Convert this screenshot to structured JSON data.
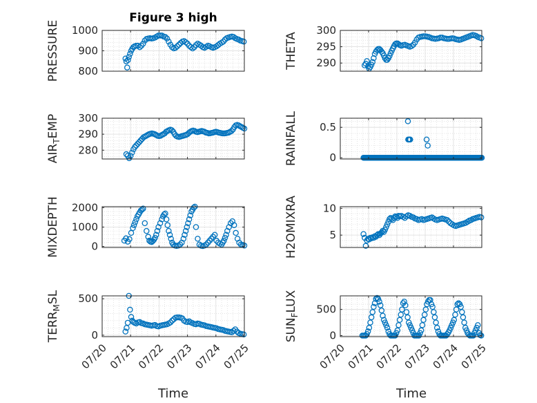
{
  "figure": {
    "title": "Figure 3 high",
    "xlabel": "Time"
  },
  "chart_data": [
    {
      "type": "scatter",
      "ylabel": "PRESSURE",
      "xlim": [
        0,
        5
      ],
      "ylim": [
        800,
        1000
      ],
      "yticks": [
        800,
        900,
        1000
      ],
      "xticks": [
        "07/20",
        "07/21",
        "07/22",
        "07/23",
        "07/24",
        "07/25"
      ],
      "show_xticklabels": false,
      "grid": true,
      "x": [
        0.82,
        0.85,
        0.88,
        0.91,
        0.94,
        0.98,
        1.02,
        1.06,
        1.1,
        1.14,
        1.2,
        1.26,
        1.32,
        1.38,
        1.44,
        1.5,
        1.56,
        1.62,
        1.68,
        1.74,
        1.8,
        1.86,
        1.92,
        1.98,
        2.04,
        2.1,
        2.16,
        2.22,
        2.28,
        2.34,
        2.4,
        2.46,
        2.52,
        2.58,
        2.64,
        2.7,
        2.76,
        2.82,
        2.88,
        2.94,
        3.0,
        3.06,
        3.12,
        3.18,
        3.24,
        3.3,
        3.36,
        3.42,
        3.48,
        3.54,
        3.6,
        3.66,
        3.72,
        3.78,
        3.84,
        3.9,
        3.96,
        4.02,
        4.08,
        4.14,
        4.2,
        4.26,
        4.32,
        4.38,
        4.44,
        4.5,
        4.56,
        4.62,
        4.68,
        4.74,
        4.8,
        4.86,
        4.92,
        4.98
      ],
      "y": [
        862,
        848,
        818,
        855,
        870,
        885,
        900,
        910,
        918,
        922,
        925,
        925,
        918,
        925,
        935,
        950,
        958,
        960,
        962,
        960,
        962,
        965,
        970,
        975,
        975,
        975,
        970,
        968,
        960,
        945,
        930,
        918,
        912,
        915,
        922,
        930,
        938,
        945,
        948,
        942,
        935,
        925,
        918,
        912,
        918,
        928,
        935,
        930,
        925,
        918,
        915,
        920,
        925,
        922,
        918,
        915,
        918,
        922,
        928,
        935,
        940,
        945,
        955,
        962,
        965,
        968,
        970,
        968,
        962,
        958,
        955,
        950,
        948,
        945
      ]
    },
    {
      "type": "scatter",
      "ylabel": "THETA",
      "xlim": [
        0,
        5
      ],
      "ylim": [
        287.5,
        300
      ],
      "yticks": [
        290,
        295,
        300
      ],
      "xticks": [
        "07/20",
        "07/21",
        "07/22",
        "07/23",
        "07/24",
        "07/25"
      ],
      "show_xticklabels": false,
      "grid": true,
      "x": [
        0.86,
        0.9,
        0.94,
        0.98,
        1.02,
        1.06,
        1.1,
        1.14,
        1.18,
        1.22,
        1.26,
        1.3,
        1.34,
        1.38,
        1.42,
        1.46,
        1.5,
        1.54,
        1.58,
        1.62,
        1.66,
        1.7,
        1.74,
        1.78,
        1.82,
        1.86,
        1.9,
        1.94,
        1.98,
        2.02,
        2.06,
        2.1,
        2.16,
        2.22,
        2.28,
        2.34,
        2.4,
        2.46,
        2.52,
        2.58,
        2.64,
        2.7,
        2.76,
        2.82,
        2.88,
        2.94,
        3.0,
        3.06,
        3.12,
        3.18,
        3.24,
        3.3,
        3.36,
        3.42,
        3.48,
        3.54,
        3.6,
        3.66,
        3.72,
        3.78,
        3.84,
        3.9,
        3.96,
        4.02,
        4.08,
        4.14,
        4.2,
        4.26,
        4.32,
        4.38,
        4.44,
        4.5,
        4.56,
        4.62,
        4.68,
        4.74,
        4.8,
        4.86,
        4.92,
        4.98
      ],
      "y": [
        289.3,
        289.8,
        290.6,
        289.0,
        288.3,
        288.8,
        289.5,
        290.3,
        291.5,
        292.8,
        293.5,
        294.0,
        294.3,
        294.3,
        294.0,
        293.5,
        293.0,
        292.3,
        291.5,
        291.0,
        291.0,
        291.5,
        292.2,
        293.0,
        293.8,
        294.5,
        295.2,
        295.8,
        296.0,
        296.0,
        295.8,
        295.5,
        295.3,
        295.5,
        295.6,
        295.4,
        295.2,
        295.0,
        295.2,
        295.6,
        296.3,
        297.2,
        297.8,
        298.0,
        298.1,
        298.2,
        298.2,
        298.1,
        298.0,
        297.8,
        297.6,
        297.5,
        297.4,
        297.5,
        297.6,
        297.8,
        297.8,
        297.6,
        297.5,
        297.4,
        297.4,
        297.5,
        297.6,
        297.5,
        297.3,
        297.2,
        297.1,
        297.2,
        297.4,
        297.6,
        297.8,
        298.0,
        298.2,
        298.4,
        298.6,
        298.5,
        298.3,
        298.0,
        297.8,
        297.6
      ]
    },
    {
      "type": "scatter",
      "ylabel": "AIR_T_EMP",
      "xlim": [
        0,
        5
      ],
      "ylim": [
        274.5,
        300
      ],
      "yticks": [
        280,
        290,
        300
      ],
      "xticks": [
        "07/20",
        "07/21",
        "07/22",
        "07/23",
        "07/24",
        "07/25"
      ],
      "show_xticklabels": false,
      "grid": true,
      "x": [
        0.85,
        0.9,
        0.95,
        1.0,
        1.05,
        1.1,
        1.15,
        1.2,
        1.25,
        1.3,
        1.35,
        1.4,
        1.45,
        1.5,
        1.55,
        1.6,
        1.65,
        1.7,
        1.75,
        1.8,
        1.85,
        1.9,
        1.95,
        2.0,
        2.05,
        2.1,
        2.15,
        2.2,
        2.25,
        2.3,
        2.35,
        2.4,
        2.45,
        2.5,
        2.55,
        2.6,
        2.65,
        2.7,
        2.75,
        2.8,
        2.85,
        2.9,
        2.95,
        3.0,
        3.05,
        3.1,
        3.15,
        3.2,
        3.25,
        3.3,
        3.35,
        3.4,
        3.45,
        3.5,
        3.55,
        3.6,
        3.65,
        3.7,
        3.75,
        3.8,
        3.85,
        3.9,
        3.95,
        4.0,
        4.05,
        4.1,
        4.15,
        4.2,
        4.25,
        4.3,
        4.35,
        4.4,
        4.45,
        4.5,
        4.55,
        4.6,
        4.65,
        4.7,
        4.75,
        4.8,
        4.85,
        4.9,
        4.95,
        5.0
      ],
      "y": [
        277.5,
        276.5,
        275.0,
        276.5,
        278.5,
        280.5,
        282.0,
        283.0,
        284.0,
        285.0,
        286.0,
        287.0,
        288.0,
        288.5,
        289.0,
        289.5,
        290.0,
        290.3,
        290.5,
        290.3,
        290.0,
        289.5,
        289.0,
        288.8,
        289.0,
        289.5,
        290.0,
        290.5,
        291.5,
        292.0,
        292.5,
        292.8,
        292.5,
        291.5,
        290.0,
        289.0,
        288.5,
        288.3,
        288.5,
        288.8,
        289.0,
        289.3,
        289.5,
        290.0,
        290.8,
        291.5,
        292.0,
        292.3,
        292.0,
        291.5,
        291.3,
        291.5,
        291.8,
        292.0,
        291.8,
        291.5,
        291.0,
        290.8,
        290.5,
        290.6,
        290.8,
        291.0,
        291.3,
        291.5,
        291.3,
        291.0,
        290.8,
        290.6,
        290.5,
        290.5,
        290.6,
        290.8,
        291.0,
        291.5,
        292.0,
        293.0,
        294.5,
        295.5,
        295.8,
        295.5,
        295.0,
        294.5,
        294.0,
        293.5
      ]
    },
    {
      "type": "scatter",
      "ylabel": "RAINFALL",
      "xlim": [
        0,
        5
      ],
      "ylim": [
        -0.02,
        0.65
      ],
      "yticks": [
        0,
        0.5
      ],
      "ytick_labels": [
        "0",
        "0.5"
      ],
      "xticks": [
        "07/20",
        "07/21",
        "07/22",
        "07/23",
        "07/24",
        "07/25"
      ],
      "show_xticklabels": false,
      "grid": true,
      "baseline": {
        "from": 0.82,
        "to": 5.0,
        "step": 0.02,
        "value": 0
      },
      "x": [
        2.39,
        2.4,
        2.42,
        2.45,
        2.47,
        3.05,
        3.09
      ],
      "y": [
        0.6,
        0.3,
        0.3,
        0.3,
        0.3,
        0.3,
        0.2
      ]
    },
    {
      "type": "scatter",
      "ylabel": "MIXDEPTH",
      "xlim": [
        0,
        5
      ],
      "ylim": [
        -50,
        2050
      ],
      "yticks": [
        0,
        1000,
        2000
      ],
      "xticks": [
        "07/20",
        "07/21",
        "07/22",
        "07/23",
        "07/24",
        "07/25"
      ],
      "show_xticklabels": false,
      "grid": true,
      "x": [
        0.78,
        0.84,
        0.9,
        0.96,
        1.02,
        1.08,
        1.12,
        1.16,
        1.2,
        1.24,
        1.28,
        1.32,
        1.36,
        1.4,
        1.44,
        1.5,
        1.56,
        1.62,
        1.66,
        1.7,
        1.74,
        1.78,
        1.82,
        1.86,
        1.9,
        1.94,
        1.98,
        2.04,
        2.1,
        2.14,
        2.18,
        2.22,
        2.26,
        2.3,
        2.34,
        2.38,
        2.42,
        2.46,
        2.5,
        2.56,
        2.62,
        2.68,
        2.74,
        2.8,
        2.86,
        2.9,
        2.94,
        2.98,
        3.02,
        3.06,
        3.1,
        3.14,
        3.18,
        3.22,
        3.26,
        3.3,
        3.36,
        3.42,
        3.48,
        3.54,
        3.6,
        3.66,
        3.72,
        3.78,
        3.84,
        3.9,
        3.96,
        4.02,
        4.08,
        4.14,
        4.2,
        4.24,
        4.28,
        4.32,
        4.36,
        4.4,
        4.46,
        4.52,
        4.58,
        4.64,
        4.7,
        4.76,
        4.82,
        4.88,
        4.94,
        5.0
      ],
      "y": [
        300,
        420,
        250,
        380,
        700,
        950,
        1100,
        1250,
        1400,
        1550,
        1650,
        1750,
        1850,
        1900,
        1950,
        1200,
        800,
        500,
        300,
        250,
        230,
        280,
        350,
        450,
        600,
        800,
        1000,
        1200,
        1400,
        1550,
        1650,
        1700,
        1400,
        1100,
        800,
        600,
        400,
        200,
        100,
        50,
        30,
        50,
        100,
        200,
        400,
        600,
        800,
        1000,
        1200,
        1400,
        1600,
        1800,
        1900,
        2000,
        2050,
        1000,
        400,
        100,
        40,
        20,
        50,
        100,
        200,
        300,
        400,
        500,
        600,
        300,
        200,
        150,
        100,
        200,
        300,
        450,
        600,
        800,
        1000,
        1200,
        1300,
        1100,
        700,
        400,
        200,
        100,
        80,
        50
      ]
    },
    {
      "type": "scatter",
      "ylabel": "H2OMIXRA",
      "xlim": [
        0,
        5
      ],
      "ylim": [
        2.7,
        10.3
      ],
      "yticks": [
        5,
        10
      ],
      "xticks": [
        "07/20",
        "07/21",
        "07/22",
        "07/23",
        "07/24",
        "07/25"
      ],
      "show_xticklabels": false,
      "grid": true,
      "x": [
        0.82,
        0.86,
        0.9,
        0.94,
        0.98,
        1.02,
        1.06,
        1.1,
        1.14,
        1.18,
        1.22,
        1.26,
        1.3,
        1.34,
        1.38,
        1.42,
        1.46,
        1.5,
        1.54,
        1.58,
        1.62,
        1.66,
        1.7,
        1.74,
        1.78,
        1.82,
        1.86,
        1.9,
        1.94,
        1.98,
        2.02,
        2.06,
        2.1,
        2.16,
        2.22,
        2.28,
        2.34,
        2.4,
        2.46,
        2.52,
        2.58,
        2.64,
        2.7,
        2.76,
        2.82,
        2.88,
        2.94,
        3.0,
        3.06,
        3.12,
        3.18,
        3.24,
        3.3,
        3.36,
        3.42,
        3.48,
        3.54,
        3.6,
        3.66,
        3.72,
        3.78,
        3.84,
        3.9,
        3.96,
        4.02,
        4.08,
        4.14,
        4.2,
        4.26,
        4.32,
        4.38,
        4.44,
        4.5,
        4.56,
        4.62,
        4.68,
        4.74,
        4.8,
        4.86,
        4.92,
        4.98
      ],
      "y": [
        5.2,
        4.5,
        3.0,
        4.0,
        4.3,
        4.2,
        4.5,
        4.4,
        4.6,
        4.5,
        4.8,
        4.7,
        5.0,
        5.2,
        5.0,
        5.3,
        5.5,
        5.8,
        5.6,
        6.0,
        6.5,
        7.0,
        7.5,
        8.0,
        8.2,
        8.0,
        7.8,
        8.2,
        8.5,
        8.4,
        8.2,
        8.6,
        8.5,
        8.6,
        8.4,
        8.2,
        8.5,
        8.7,
        8.6,
        8.4,
        8.3,
        8.1,
        8.0,
        7.8,
        7.9,
        8.0,
        7.8,
        7.9,
        8.0,
        8.1,
        8.2,
        8.3,
        8.1,
        7.9,
        7.8,
        7.9,
        8.0,
        8.1,
        8.0,
        7.9,
        7.8,
        7.5,
        7.2,
        7.0,
        6.8,
        6.7,
        6.8,
        6.9,
        7.0,
        7.1,
        7.2,
        7.3,
        7.5,
        7.7,
        7.8,
        8.0,
        8.1,
        8.2,
        8.3,
        8.4,
        8.3
      ]
    },
    {
      "type": "scatter",
      "ylabel": "TERR_M_SL",
      "xlim": [
        0,
        5
      ],
      "ylim": [
        -20,
        540
      ],
      "yticks": [
        0,
        500
      ],
      "xticks": [
        "07/20",
        "07/21",
        "07/22",
        "07/23",
        "07/24",
        "07/25"
      ],
      "show_xticklabels": true,
      "grid": true,
      "x": [
        0.82,
        0.86,
        0.9,
        0.94,
        0.98,
        1.02,
        1.06,
        1.1,
        1.14,
        1.2,
        1.26,
        1.32,
        1.38,
        1.44,
        1.5,
        1.56,
        1.62,
        1.68,
        1.74,
        1.8,
        1.86,
        1.92,
        1.98,
        2.04,
        2.1,
        2.16,
        2.22,
        2.28,
        2.34,
        2.4,
        2.46,
        2.52,
        2.58,
        2.64,
        2.7,
        2.76,
        2.82,
        2.88,
        2.94,
        3.0,
        3.06,
        3.12,
        3.18,
        3.24,
        3.3,
        3.36,
        3.42,
        3.48,
        3.54,
        3.6,
        3.66,
        3.72,
        3.78,
        3.84,
        3.9,
        3.96,
        4.02,
        4.08,
        4.14,
        4.2,
        4.26,
        4.32,
        4.38,
        4.44,
        4.5,
        4.56,
        4.62,
        4.68,
        4.74,
        4.8,
        4.86,
        4.92,
        4.98
      ],
      "y": [
        50,
        100,
        170,
        540,
        350,
        250,
        200,
        180,
        170,
        160,
        175,
        180,
        165,
        160,
        150,
        145,
        140,
        135,
        130,
        135,
        140,
        125,
        120,
        130,
        135,
        140,
        145,
        150,
        160,
        175,
        200,
        220,
        240,
        245,
        245,
        240,
        230,
        200,
        185,
        180,
        190,
        175,
        165,
        155,
        150,
        160,
        155,
        145,
        140,
        135,
        125,
        120,
        115,
        110,
        105,
        100,
        95,
        85,
        80,
        75,
        70,
        60,
        55,
        50,
        45,
        40,
        60,
        80,
        50,
        30,
        20,
        15,
        10
      ]
    },
    {
      "type": "scatter",
      "ylabel": "SUN_F_LUX",
      "xlim": [
        0,
        5
      ],
      "ylim": [
        -20,
        760
      ],
      "yticks": [
        0,
        500
      ],
      "xticks": [
        "07/20",
        "07/21",
        "07/22",
        "07/23",
        "07/24",
        "07/25"
      ],
      "show_xticklabels": true,
      "grid": true,
      "x": [
        0.78,
        0.82,
        0.86,
        0.9,
        0.94,
        0.98,
        1.02,
        1.06,
        1.1,
        1.14,
        1.18,
        1.22,
        1.26,
        1.3,
        1.34,
        1.38,
        1.42,
        1.46,
        1.5,
        1.54,
        1.58,
        1.62,
        1.66,
        1.7,
        1.74,
        1.78,
        1.82,
        1.86,
        1.9,
        1.94,
        1.98,
        2.02,
        2.06,
        2.1,
        2.14,
        2.18,
        2.22,
        2.26,
        2.3,
        2.34,
        2.38,
        2.42,
        2.46,
        2.5,
        2.54,
        2.58,
        2.62,
        2.66,
        2.7,
        2.74,
        2.78,
        2.82,
        2.86,
        2.9,
        2.94,
        2.98,
        3.02,
        3.06,
        3.1,
        3.14,
        3.18,
        3.22,
        3.26,
        3.3,
        3.34,
        3.38,
        3.42,
        3.46,
        3.5,
        3.54,
        3.58,
        3.62,
        3.66,
        3.7,
        3.74,
        3.78,
        3.82,
        3.86,
        3.9,
        3.94,
        3.98,
        4.02,
        4.06,
        4.1,
        4.14,
        4.18,
        4.22,
        4.26,
        4.3,
        4.34,
        4.38,
        4.42,
        4.46,
        4.5,
        4.54,
        4.58,
        4.62,
        4.66,
        4.7,
        4.74,
        4.78,
        4.82,
        4.86,
        4.9,
        4.94,
        4.98
      ],
      "y": [
        0,
        0,
        0,
        0,
        30,
        80,
        150,
        250,
        350,
        450,
        550,
        620,
        700,
        720,
        700,
        650,
        580,
        480,
        380,
        300,
        250,
        200,
        150,
        80,
        30,
        0,
        0,
        0,
        0,
        0,
        50,
        100,
        200,
        300,
        400,
        500,
        620,
        650,
        580,
        450,
        350,
        250,
        200,
        150,
        100,
        50,
        0,
        0,
        0,
        0,
        0,
        50,
        100,
        200,
        300,
        400,
        500,
        600,
        650,
        680,
        680,
        600,
        550,
        450,
        350,
        250,
        150,
        80,
        30,
        0,
        0,
        0,
        0,
        0,
        0,
        30,
        60,
        100,
        150,
        200,
        250,
        300,
        400,
        500,
        600,
        620,
        600,
        550,
        450,
        350,
        250,
        150,
        100,
        50,
        20,
        0,
        0,
        0,
        0,
        50,
        100,
        150,
        200,
        50,
        10,
        0
      ]
    }
  ]
}
